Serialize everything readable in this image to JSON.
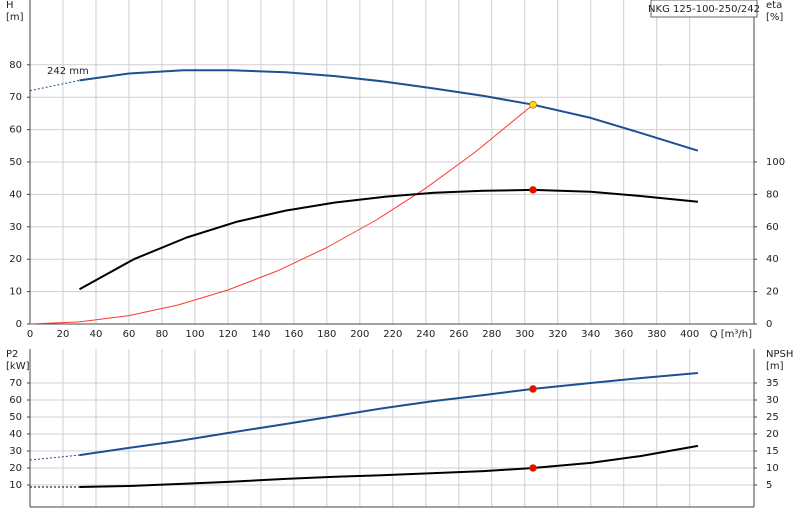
{
  "chart_data": [
    {
      "type": "line",
      "title": "NKG 125-100-250/242",
      "ylabel": [
        "H",
        "[m]"
      ],
      "y2label": [
        "eta",
        "[%]"
      ],
      "xlabel": "Q [m³/h]",
      "annotation": "242 mm",
      "xlim": [
        0,
        439
      ],
      "xticks": [
        0,
        20,
        40,
        60,
        80,
        100,
        120,
        140,
        160,
        180,
        200,
        220,
        240,
        260,
        280,
        300,
        320,
        340,
        360,
        380,
        400
      ],
      "ylim": [
        0,
        100
      ],
      "yticks": [
        0,
        10,
        20,
        30,
        40,
        50,
        60,
        70,
        80
      ],
      "y2lim": [
        0,
        200
      ],
      "y2ticks": [
        0,
        20,
        40,
        60,
        80,
        100
      ],
      "grid": true,
      "series": [
        {
          "style": "dotted",
          "color": "#1d4f91",
          "x": [
            0,
            30
          ],
          "values": [
            72,
            75.2
          ]
        },
        {
          "style": "solid",
          "color": "#1d4f91",
          "x": [
            30,
            60,
            93,
            122,
            155,
            185,
            215,
            245,
            275,
            305,
            340,
            370,
            405
          ],
          "values": [
            75.2,
            77.3,
            78.3,
            78.3,
            77.7,
            76.5,
            74.8,
            72.7,
            70.4,
            67.7,
            63.6,
            59,
            53.5
          ]
        },
        {
          "style": "thin",
          "color": "#ff3b30",
          "x": [
            0,
            30,
            60,
            90,
            120,
            150,
            180,
            210,
            240,
            270,
            305
          ],
          "values": [
            0,
            0.65,
            2.6,
            5.9,
            10.5,
            16.4,
            23.6,
            32.1,
            41.9,
            53.1,
            67.7
          ]
        },
        {
          "style": "solid",
          "color": "#000000",
          "axis": "y2",
          "x": [
            30,
            63,
            95,
            125,
            155,
            185,
            215,
            245,
            275,
            305,
            340,
            370,
            405
          ],
          "values": [
            21.5,
            40,
            53.4,
            63,
            70,
            75,
            78.5,
            81,
            82.2,
            82.8,
            81.6,
            79,
            75.5
          ]
        },
        {
          "style": "marker",
          "color": "#ffd800",
          "x": [
            305
          ],
          "values": [
            67.7
          ]
        },
        {
          "style": "marker",
          "color": "#ff0000",
          "axis": "y2",
          "x": [
            305
          ],
          "values": [
            82.8
          ]
        }
      ]
    },
    {
      "type": "line",
      "ylabel": [
        "P2",
        "[kW]"
      ],
      "y2label": [
        "NPSH",
        "[m]"
      ],
      "xlim": [
        0,
        439
      ],
      "ylim": [
        0,
        90
      ],
      "yticks": [
        10,
        20,
        30,
        40,
        50,
        60,
        70
      ],
      "y2lim": [
        0,
        45
      ],
      "y2ticks": [
        5,
        10,
        15,
        20,
        25,
        30,
        35
      ],
      "grid": true,
      "series": [
        {
          "style": "dotted",
          "color": "#1d4f91",
          "x": [
            0,
            30
          ],
          "values": [
            24.7,
            27.6
          ]
        },
        {
          "style": "solid",
          "color": "#1d4f91",
          "x": [
            30,
            60,
            90,
            120,
            155,
            185,
            215,
            245,
            275,
            305,
            340,
            370,
            405
          ],
          "values": [
            27.6,
            31.8,
            35.9,
            40.6,
            45.9,
            50.6,
            55.3,
            59.4,
            62.9,
            66.5,
            70,
            72.9,
            75.9
          ]
        },
        {
          "style": "dotted",
          "color": "#000000",
          "axis": "y2",
          "x": [
            0,
            30
          ],
          "values": [
            4.4,
            4.4
          ]
        },
        {
          "style": "solid",
          "color": "#000000",
          "axis": "y2",
          "x": [
            30,
            60,
            90,
            120,
            155,
            185,
            215,
            245,
            275,
            305,
            340,
            370,
            405
          ],
          "values": [
            4.4,
            4.7,
            5.3,
            5.9,
            6.8,
            7.4,
            7.9,
            8.5,
            9.1,
            10,
            11.5,
            13.5,
            16.5
          ]
        },
        {
          "style": "marker",
          "color": "#ff0000",
          "x": [
            305
          ],
          "values": [
            66.5
          ]
        },
        {
          "style": "marker",
          "color": "#ff0000",
          "axis": "y2",
          "x": [
            305
          ],
          "values": [
            10
          ]
        }
      ]
    }
  ]
}
